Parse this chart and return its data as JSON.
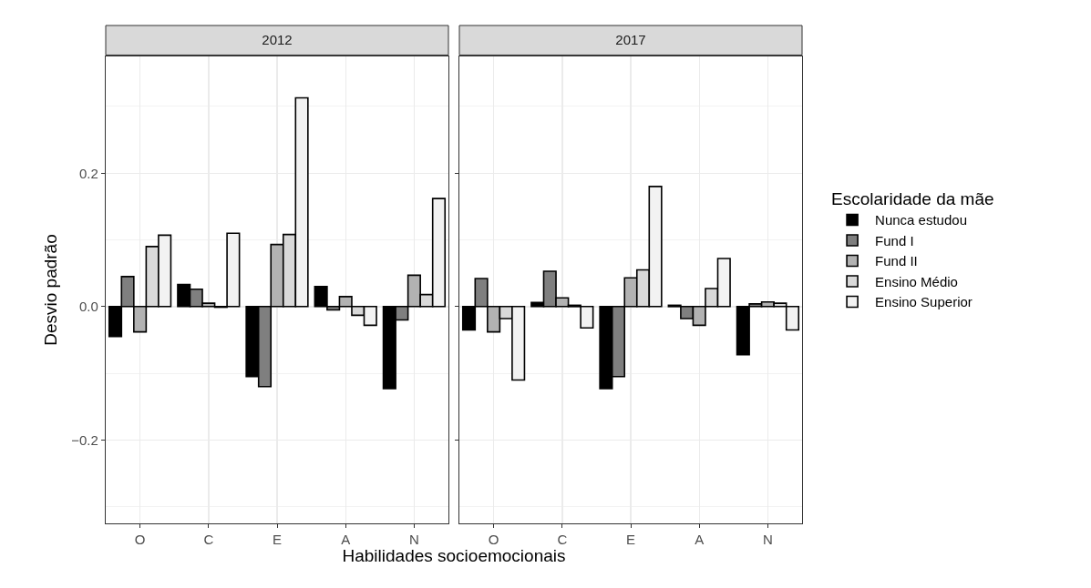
{
  "chart_data": [
    {
      "type": "bar",
      "title": "2012",
      "ylabel": "Desvio padrão",
      "xlabel": "Habilidades socioemocionais",
      "categories": [
        "O",
        "C",
        "E",
        "A",
        "N"
      ],
      "ylim": [
        -0.325,
        0.375
      ],
      "yticks": [
        {
          "value": -0.2,
          "label": "−0.2"
        },
        {
          "value": 0,
          "label": "0.0"
        },
        {
          "value": 0.2,
          "label": "0.2"
        }
      ],
      "grid": true,
      "series": [
        {
          "color": "#000000",
          "values": [
            -0.045,
            0.033,
            -0.105,
            0.03,
            -0.123
          ]
        },
        {
          "color": "#7f7f7f",
          "values": [
            0.045,
            0.026,
            -0.12,
            -0.005,
            -0.02
          ]
        },
        {
          "color": "#b2b2b2",
          "values": [
            -0.038,
            0.005,
            0.093,
            0.015,
            0.047
          ]
        },
        {
          "color": "#d9d9d9",
          "values": [
            0.09,
            -0.001,
            0.108,
            -0.013,
            0.018
          ]
        },
        {
          "color": "#f2f2f2",
          "values": [
            0.107,
            0.11,
            0.313,
            -0.028,
            0.162
          ]
        }
      ]
    },
    {
      "type": "bar",
      "title": "2017",
      "categories": [
        "O",
        "C",
        "E",
        "A",
        "N"
      ],
      "ylim": [
        -0.325,
        0.375
      ],
      "yticks": [
        {
          "value": -0.2,
          "label": null
        },
        {
          "value": 0,
          "label": null
        },
        {
          "value": 0.2,
          "label": null
        }
      ],
      "grid": true,
      "tick_labels": "x",
      "legend": "right",
      "legend_title": "Escolaridade da mãe",
      "series": [
        {
          "name": "Nunca estudou",
          "color": "#000000",
          "values": [
            -0.035,
            0.006,
            -0.123,
            0.002,
            -0.072
          ]
        },
        {
          "name": "Fund I",
          "color": "#7f7f7f",
          "values": [
            0.042,
            0.053,
            -0.105,
            -0.018,
            0.004
          ]
        },
        {
          "name": "Fund II",
          "color": "#b2b2b2",
          "values": [
            -0.038,
            0.013,
            0.043,
            -0.028,
            0.007
          ]
        },
        {
          "name": "Ensino Médio",
          "color": "#d9d9d9",
          "values": [
            -0.018,
            0.002,
            0.055,
            0.027,
            0.005
          ]
        },
        {
          "name": "Ensino Superior",
          "color": "#f2f2f2",
          "values": [
            -0.11,
            -0.032,
            0.18,
            0.072,
            -0.035
          ]
        }
      ]
    }
  ]
}
